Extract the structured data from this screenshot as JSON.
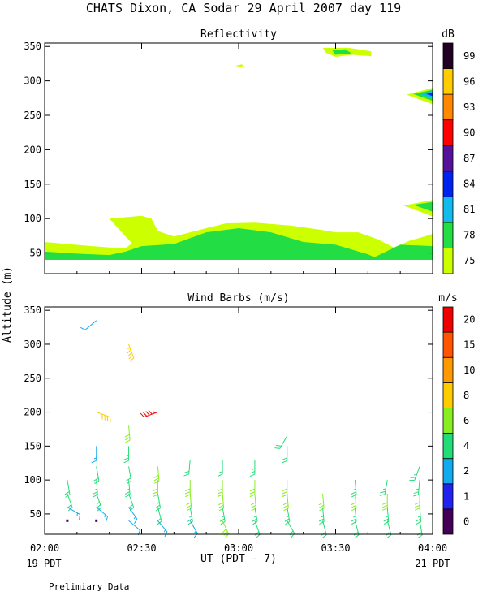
{
  "page": {
    "title": "CHATS Dixon, CA  Sodar  29 April 2007  day 119",
    "y_axis_label": "Altitude (m)",
    "x_axis_label": "UT  (PDT - 7)",
    "left_date_label": "19 PDT",
    "right_date_label": "21 PDT",
    "footer_note": "Prelimiary Data"
  },
  "chart_data": [
    {
      "type": "heatmap",
      "title": "Reflectivity",
      "x_ticks": [
        "02:00",
        "02:30",
        "03:00",
        "03:30",
        "04:00"
      ],
      "xlim_minutes_after_0200_UT": [
        0,
        120
      ],
      "ylim": [
        20,
        355
      ],
      "y_ticks": [
        "50",
        "100",
        "150",
        "200",
        "250",
        "300",
        "350"
      ],
      "colorbar": {
        "unit": "dB",
        "labels": [
          "75",
          "78",
          "81",
          "84",
          "87",
          "90",
          "93",
          "96",
          "99"
        ],
        "colors": [
          "#ccff00",
          "#22dd44",
          "#11bbee",
          "#0022ee",
          "#551199",
          "#ff0000",
          "#ff8800",
          "#ffcc00",
          "#220022"
        ]
      },
      "regions": [
        {
          "level": "75",
          "color": "#ccff00",
          "polygon": [
            [
              0,
              66
            ],
            [
              12,
              61
            ],
            [
              20,
              58
            ],
            [
              25,
              57
            ],
            [
              27,
              64
            ],
            [
              20,
              100
            ],
            [
              30,
              104
            ],
            [
              33,
              100
            ],
            [
              35,
              82
            ],
            [
              40,
              74
            ],
            [
              50,
              86
            ],
            [
              56,
              93
            ],
            [
              65,
              94
            ],
            [
              76,
              90
            ],
            [
              85,
              84
            ],
            [
              90,
              80
            ],
            [
              97,
              80
            ],
            [
              103,
              70
            ],
            [
              108,
              58
            ],
            [
              113,
              68
            ],
            [
              119,
              76
            ],
            [
              120,
              78
            ],
            [
              120,
              40
            ],
            [
              0,
              40
            ]
          ]
        },
        {
          "level": "78",
          "color": "#22dd44",
          "polygon": [
            [
              0,
              52
            ],
            [
              10,
              49
            ],
            [
              20,
              47
            ],
            [
              25,
              52
            ],
            [
              30,
              60
            ],
            [
              40,
              63
            ],
            [
              50,
              80
            ],
            [
              60,
              86
            ],
            [
              70,
              80
            ],
            [
              80,
              66
            ],
            [
              90,
              62
            ],
            [
              100,
              48
            ],
            [
              102,
              44
            ],
            [
              110,
              62
            ],
            [
              120,
              60
            ],
            [
              120,
              40
            ],
            [
              0,
              40
            ]
          ]
        },
        {
          "level": "75",
          "color": "#ccff00",
          "polygon": [
            [
              86,
              348
            ],
            [
              94,
              348
            ],
            [
              101,
              343
            ],
            [
              101,
              336
            ],
            [
              95,
              338
            ],
            [
              90,
              335
            ],
            [
              87,
              341
            ]
          ]
        },
        {
          "level": "78",
          "color": "#22dd44",
          "polygon": [
            [
              89,
              344
            ],
            [
              93,
              346
            ],
            [
              95,
              340
            ],
            [
              90,
              338
            ]
          ]
        },
        {
          "level": "75",
          "color": "#ccff00",
          "polygon": [
            [
              59,
              322
            ],
            [
              61,
              324
            ],
            [
              62,
              319
            ]
          ]
        },
        {
          "level": "75",
          "color": "#ccff00",
          "polygon": [
            [
              112,
              280
            ],
            [
              120,
              290
            ],
            [
              120,
              266
            ]
          ]
        },
        {
          "level": "78",
          "color": "#22dd44",
          "polygon": [
            [
              114,
              281
            ],
            [
              120,
              287
            ],
            [
              120,
              271
            ]
          ]
        },
        {
          "level": "81",
          "color": "#11bbee",
          "polygon": [
            [
              116,
              281
            ],
            [
              120,
              285
            ],
            [
              120,
              275
            ]
          ]
        },
        {
          "level": "84",
          "color": "#0022ee",
          "polygon": [
            [
              118,
              281
            ],
            [
              120,
              283
            ],
            [
              120,
              278
            ]
          ]
        },
        {
          "level": "75",
          "color": "#ccff00",
          "polygon": [
            [
              111,
              119
            ],
            [
              120,
              127
            ],
            [
              120,
              103
            ]
          ]
        },
        {
          "level": "78",
          "color": "#22dd44",
          "polygon": [
            [
              114,
              120
            ],
            [
              120,
              124
            ],
            [
              120,
              110
            ]
          ]
        }
      ]
    },
    {
      "type": "scatter",
      "title": "Wind Barbs (m/s)",
      "x_ticks": [
        "02:00",
        "02:30",
        "03:00",
        "03:30",
        "04:00"
      ],
      "xlim_minutes_after_0200_UT": [
        0,
        120
      ],
      "ylim": [
        20,
        355
      ],
      "y_ticks": [
        "50",
        "100",
        "150",
        "200",
        "250",
        "300",
        "350"
      ],
      "colorbar": {
        "unit": "m/s",
        "labels": [
          "0",
          "1",
          "2",
          "4",
          "6",
          "8",
          "10",
          "15",
          "20"
        ],
        "colors": [
          "#440055",
          "#2222ee",
          "#11aaee",
          "#22dd77",
          "#88ee22",
          "#ffcc00",
          "#ff9900",
          "#ff5500",
          "#ee0000"
        ]
      },
      "barb_columns": [
        {
          "t": 7,
          "barbs": [
            {
              "alt": 100,
              "speed": 4.5,
              "dir": 170
            },
            {
              "alt": 80,
              "speed": 4.5,
              "dir": 160
            },
            {
              "alt": 60,
              "speed": 3,
              "dir": 120
            },
            {
              "alt": 40,
              "speed": 0.5,
              "dir": 110
            }
          ]
        },
        {
          "t": 16,
          "barbs": [
            {
              "alt": 335,
              "speed": 2.5,
              "dir": 230
            },
            {
              "alt": 200,
              "speed": 8.5,
              "dir": 110
            },
            {
              "alt": 150,
              "speed": 3,
              "dir": 180
            },
            {
              "alt": 120,
              "speed": 4,
              "dir": 170
            },
            {
              "alt": 100,
              "speed": 5,
              "dir": 175
            },
            {
              "alt": 80,
              "speed": 5,
              "dir": 160
            },
            {
              "alt": 60,
              "speed": 3,
              "dir": 130
            },
            {
              "alt": 40,
              "speed": 0.5,
              "dir": 0
            }
          ]
        },
        {
          "t": 26,
          "barbs": [
            {
              "alt": 300,
              "speed": 9,
              "dir": 160
            },
            {
              "alt": 180,
              "speed": 6,
              "dir": 175
            },
            {
              "alt": 150,
              "speed": 5,
              "dir": 180
            },
            {
              "alt": 120,
              "speed": 4.5,
              "dir": 170
            },
            {
              "alt": 100,
              "speed": 5,
              "dir": 175
            },
            {
              "alt": 80,
              "speed": 4,
              "dir": 160
            },
            {
              "alt": 60,
              "speed": 3,
              "dir": 145
            },
            {
              "alt": 40,
              "speed": 2.5,
              "dir": 130
            }
          ]
        },
        {
          "t": 35,
          "barbs": [
            {
              "alt": 200,
              "speed": 22,
              "dir": 250
            },
            {
              "alt": 120,
              "speed": 6,
              "dir": 175
            },
            {
              "alt": 100,
              "speed": 6,
              "dir": 180
            },
            {
              "alt": 80,
              "speed": 5,
              "dir": 170
            },
            {
              "alt": 60,
              "speed": 4,
              "dir": 165
            },
            {
              "alt": 40,
              "speed": 3,
              "dir": 140
            }
          ]
        },
        {
          "t": 45,
          "barbs": [
            {
              "alt": 130,
              "speed": 4.5,
              "dir": 185
            },
            {
              "alt": 100,
              "speed": 6,
              "dir": 180
            },
            {
              "alt": 80,
              "speed": 6,
              "dir": 175
            },
            {
              "alt": 60,
              "speed": 5,
              "dir": 170
            },
            {
              "alt": 40,
              "speed": 3.5,
              "dir": 150
            }
          ]
        },
        {
          "t": 55,
          "barbs": [
            {
              "alt": 130,
              "speed": 4.5,
              "dir": 180
            },
            {
              "alt": 100,
              "speed": 6,
              "dir": 180
            },
            {
              "alt": 80,
              "speed": 6,
              "dir": 175
            },
            {
              "alt": 60,
              "speed": 5,
              "dir": 170
            },
            {
              "alt": 40,
              "speed": 6,
              "dir": 155
            }
          ]
        },
        {
          "t": 65,
          "barbs": [
            {
              "alt": 130,
              "speed": 5,
              "dir": 180
            },
            {
              "alt": 100,
              "speed": 6,
              "dir": 180
            },
            {
              "alt": 80,
              "speed": 6,
              "dir": 175
            },
            {
              "alt": 60,
              "speed": 5,
              "dir": 170
            },
            {
              "alt": 40,
              "speed": 4,
              "dir": 160
            }
          ]
        },
        {
          "t": 75,
          "barbs": [
            {
              "alt": 165,
              "speed": 4.5,
              "dir": 210
            },
            {
              "alt": 150,
              "speed": 4,
              "dir": 180
            },
            {
              "alt": 100,
              "speed": 6,
              "dir": 180
            },
            {
              "alt": 80,
              "speed": 6,
              "dir": 175
            },
            {
              "alt": 60,
              "speed": 5,
              "dir": 170
            },
            {
              "alt": 40,
              "speed": 4,
              "dir": 150
            }
          ]
        },
        {
          "t": 86,
          "barbs": [
            {
              "alt": 80,
              "speed": 6,
              "dir": 175
            },
            {
              "alt": 60,
              "speed": 5,
              "dir": 175
            },
            {
              "alt": 40,
              "speed": 4,
              "dir": 165
            }
          ]
        },
        {
          "t": 96,
          "barbs": [
            {
              "alt": 100,
              "speed": 5,
              "dir": 175
            },
            {
              "alt": 80,
              "speed": 6,
              "dir": 175
            },
            {
              "alt": 60,
              "speed": 5,
              "dir": 175
            },
            {
              "alt": 40,
              "speed": 4,
              "dir": 165
            }
          ]
        },
        {
          "t": 106,
          "barbs": [
            {
              "alt": 100,
              "speed": 5,
              "dir": 190
            },
            {
              "alt": 80,
              "speed": 6,
              "dir": 180
            },
            {
              "alt": 60,
              "speed": 5,
              "dir": 175
            },
            {
              "alt": 40,
              "speed": 4,
              "dir": 165
            }
          ]
        },
        {
          "t": 116,
          "barbs": [
            {
              "alt": 120,
              "speed": 5,
              "dir": 200
            },
            {
              "alt": 100,
              "speed": 5,
              "dir": 185
            },
            {
              "alt": 80,
              "speed": 6,
              "dir": 180
            },
            {
              "alt": 60,
              "speed": 5,
              "dir": 175
            },
            {
              "alt": 40,
              "speed": 4,
              "dir": 170
            }
          ]
        }
      ]
    }
  ]
}
